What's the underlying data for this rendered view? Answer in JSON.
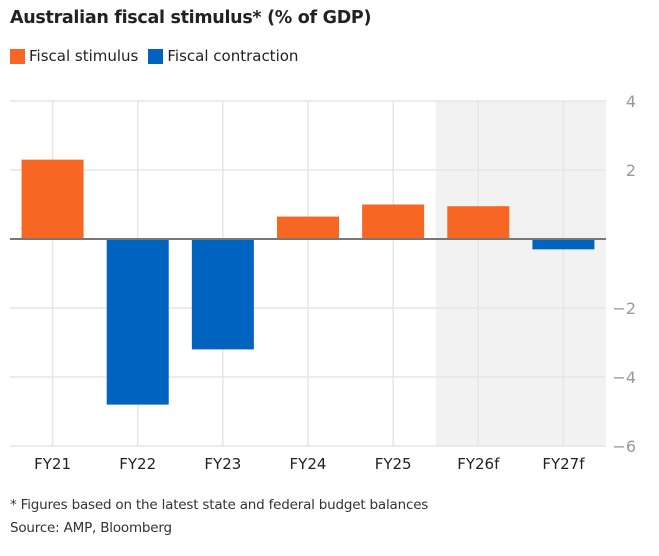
{
  "chart_data": {
    "type": "bar",
    "title": "Australian fiscal stimulus* (% of GDP)",
    "categories": [
      "FY21",
      "FY22",
      "FY23",
      "FY24",
      "FY25",
      "FY26f",
      "FY27f"
    ],
    "values": [
      2.3,
      -4.8,
      -3.2,
      0.65,
      1.0,
      0.95,
      -0.3
    ],
    "forecast_categories": [
      "FY26f",
      "FY27f"
    ],
    "legend": [
      {
        "name": "Fiscal stimulus",
        "color": "#f76623",
        "rule": "positive"
      },
      {
        "name": "Fiscal contraction",
        "color": "#0063bf",
        "rule": "negative"
      }
    ],
    "yticks": [
      4,
      2,
      0,
      -2,
      -4,
      -6
    ],
    "ytick_labels": [
      "4",
      "2",
      "",
      "−2",
      "−4",
      "−6"
    ],
    "ylim": [
      -6,
      4
    ],
    "xlabel": "",
    "ylabel": "",
    "grid": true,
    "legend_position": "top-left",
    "y_axis_side": "right"
  },
  "footnotes": {
    "note": "* Figures based on the latest state and federal budget balances",
    "source": "Source: AMP, Bloomberg"
  }
}
